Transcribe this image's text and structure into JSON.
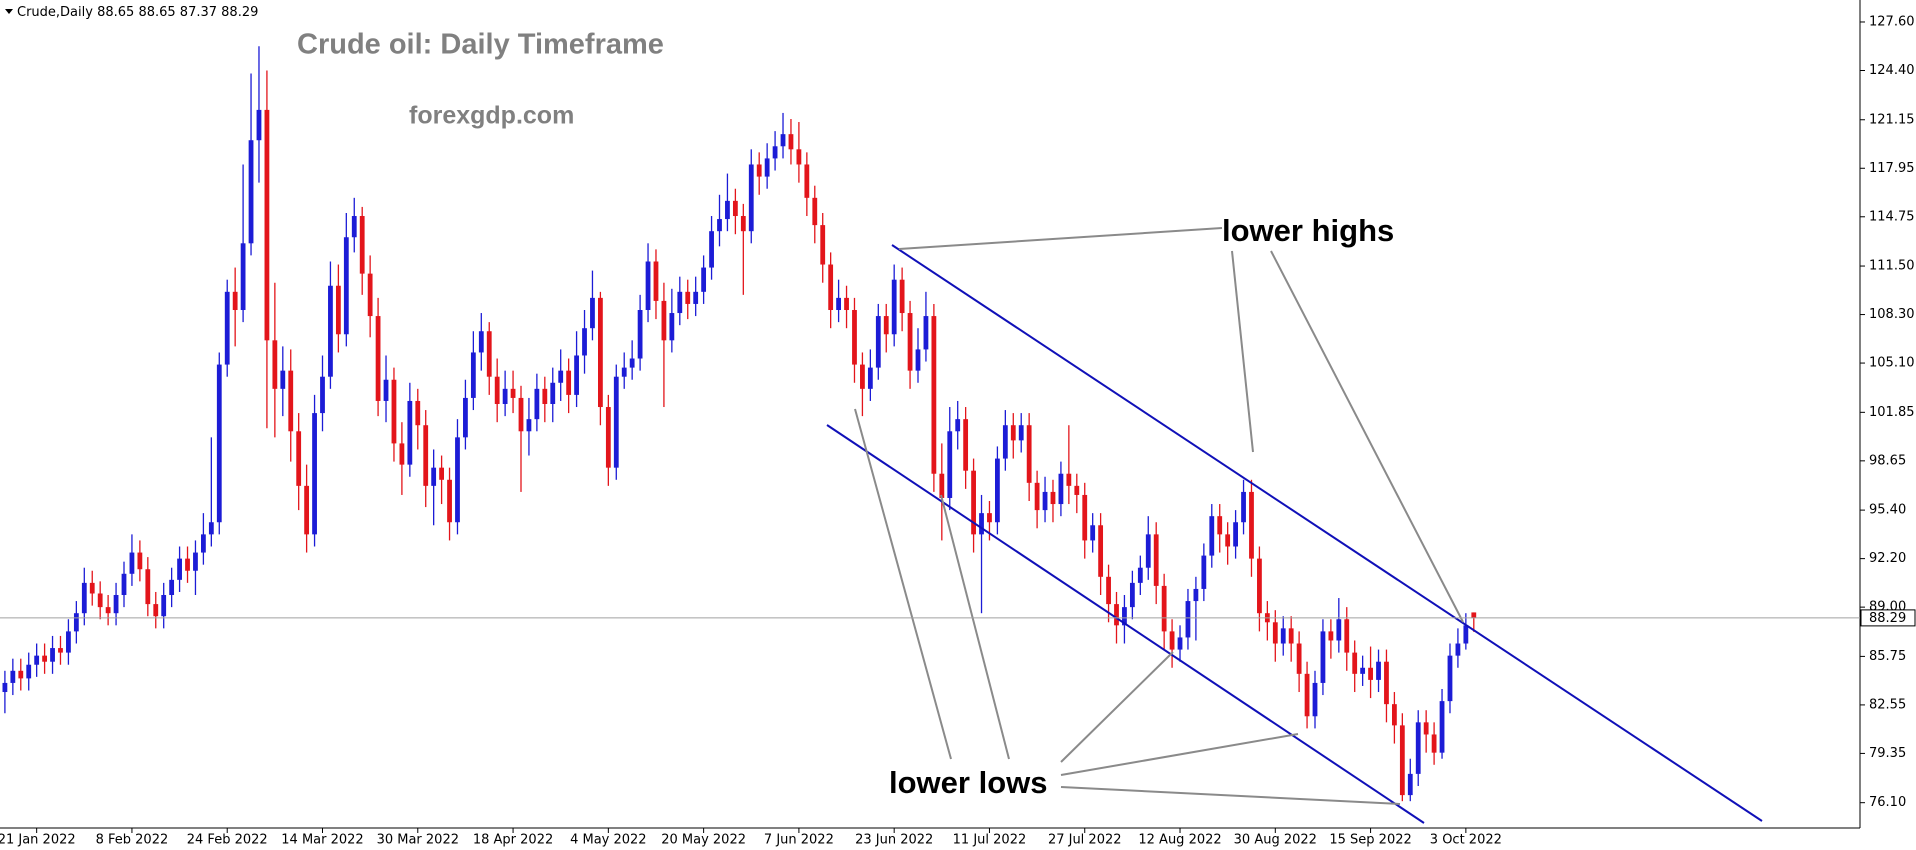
{
  "chart_data": {
    "type": "candlestick",
    "symbol": "Crude,Daily",
    "title": "Crude oil: Daily Timeframe",
    "subtitle": "forexgdp.com",
    "annotations": [
      "lower highs",
      "lower lows"
    ],
    "up_color": "#1c1cd6",
    "down_color": "#e3151b",
    "price_line_color": "#a0a0a0",
    "ylim": [
      74.76,
      128.72
    ],
    "yticks": [
      {
        "value": 127.6,
        "label": "127.60"
      },
      {
        "value": 124.4,
        "label": "124.40"
      },
      {
        "value": 121.15,
        "label": "121.15"
      },
      {
        "value": 117.95,
        "label": "117.95"
      },
      {
        "value": 114.75,
        "label": "114.75"
      },
      {
        "value": 111.5,
        "label": "111.50"
      },
      {
        "value": 108.3,
        "label": "108.30"
      },
      {
        "value": 105.1,
        "label": "105.10"
      },
      {
        "value": 101.85,
        "label": "101.85"
      },
      {
        "value": 98.65,
        "label": "98.65"
      },
      {
        "value": 95.4,
        "label": "95.40"
      },
      {
        "value": 92.2,
        "label": "92.20"
      },
      {
        "value": 89,
        "label": "89.00"
      },
      {
        "value": 85.75,
        "label": "85.75"
      },
      {
        "value": 82.55,
        "label": "82.55"
      },
      {
        "value": 79.35,
        "label": "79.35"
      },
      {
        "value": 76.1,
        "label": "76.10"
      }
    ],
    "categories": [
      null,
      null,
      null,
      null,
      "21 Jan 2022",
      null,
      null,
      null,
      null,
      null,
      null,
      null,
      null,
      null,
      null,
      null,
      "8 Feb 2022",
      null,
      null,
      null,
      null,
      null,
      null,
      null,
      null,
      null,
      null,
      null,
      "24 Feb 2022",
      null,
      null,
      null,
      null,
      null,
      null,
      null,
      null,
      null,
      null,
      null,
      "14 Mar 2022",
      null,
      null,
      null,
      null,
      null,
      null,
      null,
      null,
      null,
      null,
      null,
      "30 Mar 2022",
      null,
      null,
      null,
      null,
      null,
      null,
      null,
      null,
      null,
      null,
      null,
      "18 Apr 2022",
      null,
      null,
      null,
      null,
      null,
      null,
      null,
      null,
      null,
      null,
      null,
      "4 May 2022",
      null,
      null,
      null,
      null,
      null,
      null,
      null,
      null,
      null,
      null,
      null,
      "20 May 2022",
      null,
      null,
      null,
      null,
      null,
      null,
      null,
      null,
      null,
      null,
      null,
      "7 Jun 2022",
      null,
      null,
      null,
      null,
      null,
      null,
      null,
      null,
      null,
      null,
      null,
      "23 Jun 2022",
      null,
      null,
      null,
      null,
      null,
      null,
      null,
      null,
      null,
      null,
      null,
      "11 Jul 2022",
      null,
      null,
      null,
      null,
      null,
      null,
      null,
      null,
      null,
      null,
      null,
      "27 Jul 2022",
      null,
      null,
      null,
      null,
      null,
      null,
      null,
      null,
      null,
      null,
      null,
      "12 Aug 2022",
      null,
      null,
      null,
      null,
      null,
      null,
      null,
      null,
      null,
      null,
      null,
      "30 Aug 2022",
      null,
      null,
      null,
      null,
      null,
      null,
      null,
      null,
      null,
      null,
      null,
      "15 Sep 2022",
      null,
      null,
      null,
      null,
      null,
      null,
      null,
      null,
      null,
      null,
      null,
      "3 Oct 2022",
      null
    ],
    "open": [
      83.4,
      84.0,
      84.8,
      84.3,
      85.2,
      85.8,
      85.4,
      86.3,
      86.0,
      87.4,
      88.6,
      90.6,
      89.9,
      89.0,
      88.6,
      89.8,
      91.2,
      92.6,
      91.5,
      89.2,
      88.4,
      89.8,
      90.8,
      92.2,
      91.4,
      92.6,
      93.8,
      94.6,
      105.0,
      109.8,
      108.6,
      113.0,
      119.8,
      121.8,
      106.6,
      103.4,
      104.6,
      100.6,
      97.0,
      93.8,
      101.8,
      104.2,
      110.2,
      107.0,
      113.4,
      114.8,
      111.0,
      108.2,
      102.6,
      104.0,
      99.8,
      98.4,
      102.6,
      101.0,
      97.0,
      98.2,
      97.4,
      94.6,
      100.2,
      102.8,
      105.8,
      107.2,
      104.2,
      102.4,
      103.4,
      102.8,
      100.6,
      101.4,
      103.4,
      102.4,
      103.8,
      104.6,
      103.0,
      105.6,
      107.4,
      109.4,
      102.2,
      98.2,
      104.2,
      104.8,
      105.4,
      108.6,
      111.8,
      109.2,
      106.6,
      108.4,
      109.8,
      109.0,
      109.8,
      111.4,
      113.8,
      114.6,
      115.8,
      114.8,
      113.8,
      118.2,
      117.4,
      118.6,
      119.4,
      120.2,
      119.2,
      118.2,
      116.0,
      114.2,
      111.6,
      108.6,
      109.4,
      108.6,
      105.0,
      103.4,
      104.8,
      108.2,
      107.0,
      110.6,
      108.4,
      104.6,
      106.0,
      108.2,
      97.8,
      96.2,
      100.6,
      101.4,
      98.0,
      93.8,
      95.2,
      94.6,
      98.8,
      101.0,
      100.0,
      101.0,
      97.2,
      95.4,
      96.6,
      95.8,
      97.8,
      97.0,
      96.4,
      93.4,
      94.4,
      91.0,
      89.2,
      87.8,
      89.0,
      90.6,
      91.6,
      93.8,
      90.4,
      87.4,
      86.2,
      87.0,
      89.4,
      90.2,
      92.4,
      95.0,
      93.8,
      93.0,
      94.6,
      96.6,
      92.2,
      88.6,
      88.0,
      86.6,
      87.6,
      86.6,
      84.6,
      81.8,
      84.0,
      87.4,
      86.8,
      88.2,
      86.0,
      84.6,
      85.0,
      84.2,
      85.4,
      82.6,
      81.2,
      76.6,
      78.0,
      81.4,
      80.6,
      79.4,
      82.8,
      85.8,
      86.6,
      88.65
    ],
    "high": [
      84.8,
      85.6,
      85.6,
      86.0,
      86.6,
      86.6,
      87.1,
      87.1,
      88.2,
      89.4,
      91.6,
      91.4,
      90.7,
      89.8,
      90.6,
      92.0,
      93.8,
      93.4,
      92.3,
      90.0,
      90.6,
      91.6,
      93.0,
      93.0,
      93.4,
      95.2,
      100.2,
      105.8,
      110.6,
      111.4,
      118.2,
      124.2,
      126.0,
      124.4,
      110.4,
      106.2,
      106.0,
      101.8,
      98.4,
      103.0,
      105.6,
      111.8,
      111.6,
      115.0,
      116.0,
      115.4,
      112.2,
      109.4,
      105.6,
      104.8,
      101.2,
      103.8,
      103.4,
      102.0,
      99.4,
      99.0,
      98.2,
      101.4,
      104.0,
      107.2,
      108.4,
      107.8,
      105.4,
      104.6,
      104.6,
      103.6,
      102.8,
      104.4,
      104.2,
      104.8,
      106.0,
      105.4,
      107.2,
      108.6,
      111.2,
      109.8,
      103.0,
      105.0,
      105.8,
      106.6,
      109.6,
      113.0,
      112.6,
      110.4,
      110.0,
      110.8,
      110.6,
      110.8,
      112.2,
      114.8,
      116.2,
      117.6,
      116.6,
      115.6,
      119.2,
      119.0,
      119.6,
      120.4,
      121.6,
      121.2,
      121.0,
      119.0,
      116.8,
      115.0,
      112.4,
      110.6,
      110.2,
      109.4,
      105.8,
      106.0,
      109.0,
      109.0,
      111.6,
      111.4,
      109.2,
      107.4,
      109.8,
      109.0,
      99.8,
      102.2,
      102.6,
      102.2,
      98.8,
      96.4,
      96.0,
      99.6,
      102.0,
      101.8,
      101.8,
      101.8,
      98.0,
      97.6,
      97.4,
      98.6,
      101.0,
      97.8,
      97.2,
      95.2,
      95.2,
      91.8,
      90.0,
      89.8,
      91.4,
      92.4,
      95.0,
      94.6,
      91.2,
      88.2,
      87.8,
      90.2,
      91.0,
      93.2,
      95.8,
      95.8,
      94.6,
      95.4,
      97.4,
      97.4,
      93.0,
      89.4,
      88.8,
      88.4,
      88.4,
      87.4,
      85.4,
      84.8,
      88.2,
      88.2,
      89.6,
      89.0,
      86.8,
      85.8,
      86.4,
      86.2,
      86.2,
      83.4,
      82.0,
      79.0,
      82.2,
      82.2,
      81.4,
      83.6,
      86.6,
      87.6,
      88.6,
      88.65
    ],
    "low": [
      82.0,
      83.2,
      83.5,
      83.5,
      84.4,
      84.6,
      84.6,
      85.2,
      85.2,
      86.6,
      87.8,
      89.1,
      88.2,
      87.8,
      87.8,
      89.0,
      90.4,
      90.7,
      88.4,
      87.6,
      87.6,
      89.0,
      90.0,
      90.6,
      89.8,
      91.8,
      93.0,
      93.8,
      104.2,
      106.2,
      107.8,
      112.2,
      117.0,
      100.8,
      100.2,
      101.6,
      98.6,
      95.4,
      92.6,
      93.0,
      100.6,
      103.4,
      105.8,
      106.2,
      112.4,
      109.6,
      106.8,
      101.6,
      101.2,
      98.6,
      96.4,
      97.6,
      99.4,
      95.6,
      94.4,
      95.8,
      93.4,
      93.8,
      99.4,
      102.0,
      104.6,
      103.0,
      101.2,
      101.6,
      101.8,
      96.6,
      99.0,
      100.6,
      101.2,
      101.2,
      102.6,
      101.8,
      102.2,
      104.4,
      106.6,
      101.0,
      97.0,
      97.4,
      103.4,
      104.0,
      104.6,
      107.8,
      108.0,
      102.2,
      105.8,
      107.6,
      108.0,
      108.2,
      109.0,
      110.6,
      112.8,
      113.8,
      113.6,
      109.6,
      113.0,
      116.2,
      116.6,
      117.8,
      118.6,
      118.2,
      117.0,
      114.8,
      113.0,
      110.4,
      107.4,
      107.8,
      107.4,
      103.8,
      101.6,
      102.6,
      104.0,
      105.8,
      106.2,
      107.2,
      103.4,
      103.8,
      105.2,
      96.6,
      93.4,
      95.4,
      99.4,
      96.8,
      92.6,
      88.6,
      93.4,
      93.8,
      98.0,
      98.8,
      99.2,
      96.0,
      94.2,
      94.6,
      94.6,
      95.0,
      95.8,
      95.2,
      92.2,
      92.6,
      89.8,
      88.0,
      86.6,
      86.6,
      88.2,
      89.8,
      90.8,
      89.2,
      86.2,
      85.0,
      85.4,
      86.2,
      86.8,
      89.4,
      91.6,
      92.6,
      91.8,
      92.2,
      93.8,
      91.0,
      87.4,
      86.8,
      85.4,
      85.8,
      85.4,
      83.4,
      81.0,
      81.0,
      83.2,
      85.6,
      86.0,
      84.8,
      83.4,
      83.8,
      83.0,
      83.4,
      81.4,
      80.0,
      76.2,
      76.2,
      77.2,
      79.4,
      78.6,
      79.0,
      82.0,
      85.0,
      86.2,
      87.37
    ],
    "close": [
      84.0,
      84.8,
      84.3,
      85.2,
      85.8,
      85.4,
      86.3,
      86.0,
      87.4,
      88.6,
      90.6,
      89.9,
      89.0,
      88.6,
      89.8,
      91.2,
      92.6,
      91.5,
      89.2,
      88.4,
      89.8,
      90.8,
      92.2,
      91.4,
      92.6,
      93.8,
      94.6,
      105.0,
      109.8,
      108.6,
      113.0,
      119.8,
      121.8,
      106.6,
      103.4,
      104.6,
      100.6,
      97.0,
      93.8,
      101.8,
      104.2,
      110.2,
      107.0,
      113.4,
      114.8,
      111.0,
      108.2,
      102.6,
      104.0,
      99.8,
      98.4,
      102.6,
      101.0,
      97.0,
      98.2,
      97.4,
      94.6,
      100.2,
      102.8,
      105.8,
      107.2,
      104.2,
      102.4,
      103.4,
      102.8,
      100.6,
      101.4,
      103.4,
      102.4,
      103.8,
      104.6,
      103.0,
      105.6,
      107.4,
      109.4,
      102.2,
      98.2,
      104.2,
      104.8,
      105.4,
      108.6,
      111.8,
      109.2,
      106.6,
      108.4,
      109.8,
      109.0,
      109.8,
      111.4,
      113.8,
      114.6,
      115.8,
      114.8,
      113.8,
      118.2,
      117.4,
      118.6,
      119.4,
      120.2,
      119.2,
      118.2,
      116.0,
      114.2,
      111.6,
      108.6,
      109.4,
      108.6,
      105.0,
      103.4,
      104.8,
      108.2,
      107.0,
      110.6,
      108.4,
      104.6,
      106.0,
      108.2,
      97.8,
      96.2,
      100.6,
      101.4,
      98.0,
      93.8,
      95.2,
      94.6,
      98.8,
      101.0,
      100.0,
      101.0,
      97.2,
      95.4,
      96.6,
      95.8,
      97.8,
      97.0,
      96.4,
      93.4,
      94.4,
      91.0,
      89.2,
      87.8,
      89.0,
      90.6,
      91.6,
      93.8,
      90.4,
      87.4,
      86.2,
      87.0,
      89.4,
      90.2,
      92.4,
      95.0,
      93.8,
      93.0,
      94.6,
      96.6,
      92.2,
      88.6,
      88.0,
      86.6,
      87.6,
      86.6,
      84.6,
      81.8,
      84.0,
      87.4,
      86.8,
      88.2,
      86.0,
      84.6,
      85.0,
      84.2,
      85.4,
      82.6,
      81.2,
      76.6,
      78.0,
      81.4,
      80.6,
      79.4,
      82.8,
      85.8,
      86.6,
      87.8,
      88.29
    ]
  }
}
